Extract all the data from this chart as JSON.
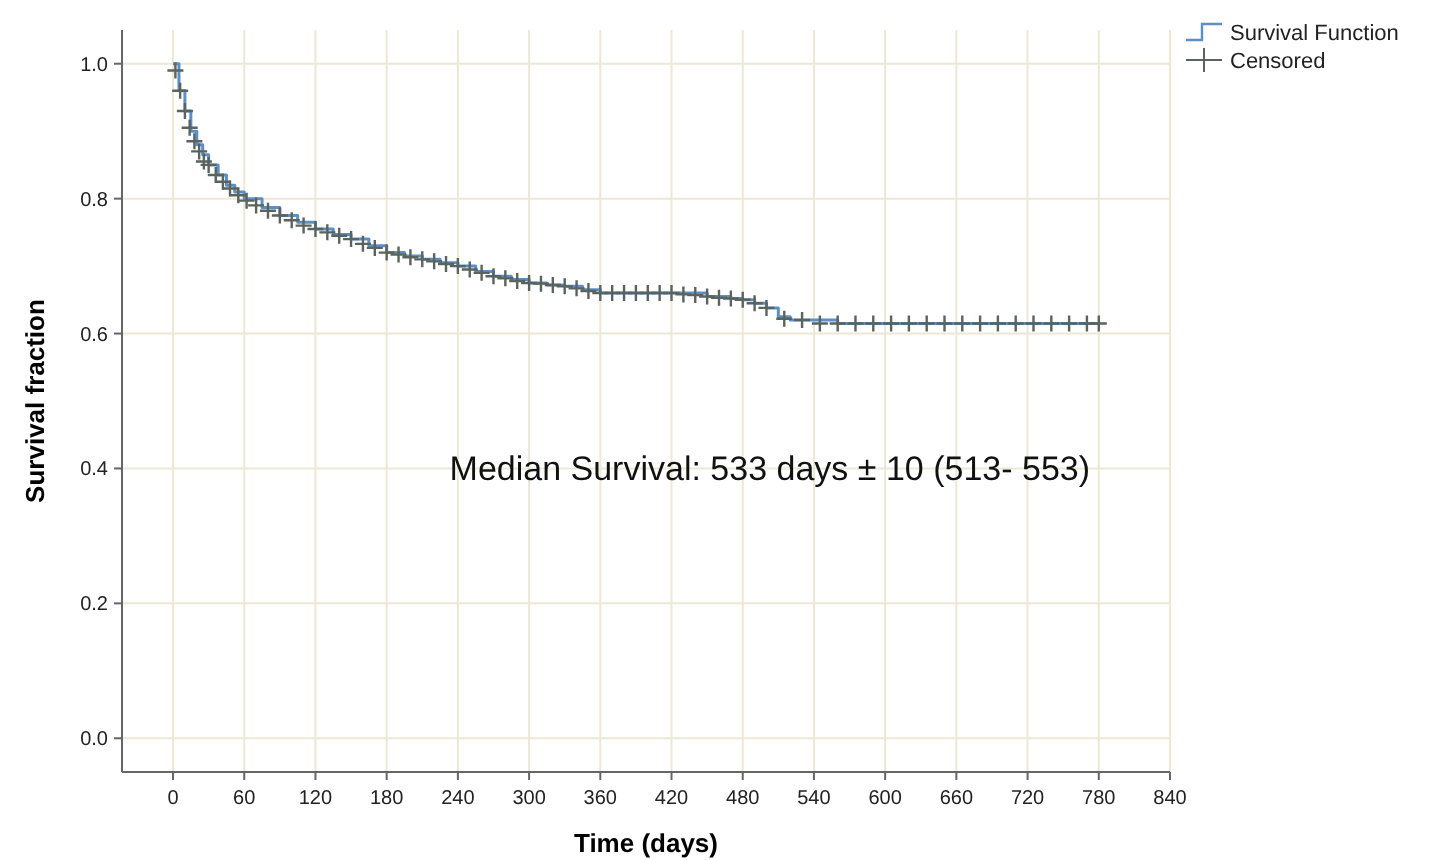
{
  "chart_data": {
    "type": "step",
    "xlabel": "Time (days)",
    "ylabel": "Survival fraction",
    "xlim": [
      -43,
      840
    ],
    "xticks": [
      0,
      60,
      120,
      180,
      240,
      300,
      360,
      420,
      480,
      540,
      600,
      660,
      720,
      780,
      840
    ],
    "ylim": [
      -0.05,
      1.05
    ],
    "yticks": [
      {
        "value": 0,
        "label": "0.0"
      },
      {
        "value": 0.2,
        "label": "0.2"
      },
      {
        "value": 0.4,
        "label": "0.4"
      },
      {
        "value": 0.6,
        "label": "0.6"
      },
      {
        "value": 0.8,
        "label": "0.8"
      },
      {
        "value": 1,
        "label": "1.0"
      }
    ],
    "grid": true,
    "legend": "top right",
    "annotations": [
      "Median Survival: 533 days ± 10 (513- 553)"
    ],
    "series": [
      {
        "name": "Survival Function",
        "color": "#5b8fc7",
        "marker": "none",
        "x": [
          0,
          5,
          10,
          15,
          20,
          25,
          30,
          38,
          45,
          52,
          60,
          75,
          90,
          105,
          120,
          135,
          150,
          165,
          180,
          195,
          210,
          225,
          240,
          255,
          270,
          285,
          300,
          315,
          330,
          345,
          360,
          390,
          420,
          450,
          470,
          480,
          490,
          500,
          510,
          520,
          560,
          600,
          660,
          720,
          780
        ],
        "values": [
          1,
          0.96,
          0.93,
          0.9,
          0.88,
          0.865,
          0.85,
          0.835,
          0.82,
          0.81,
          0.8,
          0.787,
          0.775,
          0.765,
          0.755,
          0.747,
          0.74,
          0.73,
          0.72,
          0.715,
          0.71,
          0.705,
          0.7,
          0.692,
          0.685,
          0.68,
          0.675,
          0.672,
          0.67,
          0.665,
          0.66,
          0.66,
          0.66,
          0.655,
          0.652,
          0.65,
          0.645,
          0.638,
          0.625,
          0.62,
          0.615,
          0.615,
          0.615,
          0.615,
          0.615
        ]
      },
      {
        "name": "Censored",
        "type": "scatter",
        "color": "#5a635e",
        "marker": "cross",
        "x": [
          2,
          6,
          10,
          14,
          18,
          22,
          26,
          30,
          36,
          42,
          48,
          55,
          62,
          70,
          80,
          90,
          100,
          110,
          120,
          130,
          140,
          150,
          160,
          170,
          180,
          190,
          200,
          210,
          220,
          230,
          240,
          250,
          260,
          270,
          280,
          290,
          300,
          310,
          320,
          330,
          340,
          350,
          360,
          370,
          380,
          390,
          400,
          410,
          420,
          430,
          440,
          450,
          460,
          470,
          480,
          490,
          500,
          515,
          530,
          545,
          560,
          575,
          590,
          605,
          620,
          635,
          650,
          665,
          680,
          695,
          710,
          725,
          740,
          755,
          770,
          780
        ],
        "values": [
          0.99,
          0.96,
          0.93,
          0.905,
          0.885,
          0.87,
          0.855,
          0.85,
          0.835,
          0.825,
          0.815,
          0.805,
          0.797,
          0.79,
          0.782,
          0.775,
          0.768,
          0.76,
          0.755,
          0.75,
          0.745,
          0.74,
          0.733,
          0.727,
          0.72,
          0.717,
          0.713,
          0.71,
          0.707,
          0.703,
          0.7,
          0.695,
          0.69,
          0.685,
          0.682,
          0.678,
          0.675,
          0.674,
          0.672,
          0.67,
          0.667,
          0.663,
          0.66,
          0.66,
          0.66,
          0.66,
          0.66,
          0.66,
          0.66,
          0.658,
          0.657,
          0.655,
          0.653,
          0.652,
          0.65,
          0.645,
          0.638,
          0.622,
          0.62,
          0.615,
          0.615,
          0.615,
          0.615,
          0.615,
          0.615,
          0.615,
          0.615,
          0.615,
          0.615,
          0.615,
          0.615,
          0.615,
          0.615,
          0.615,
          0.615,
          0.615
        ]
      }
    ]
  }
}
